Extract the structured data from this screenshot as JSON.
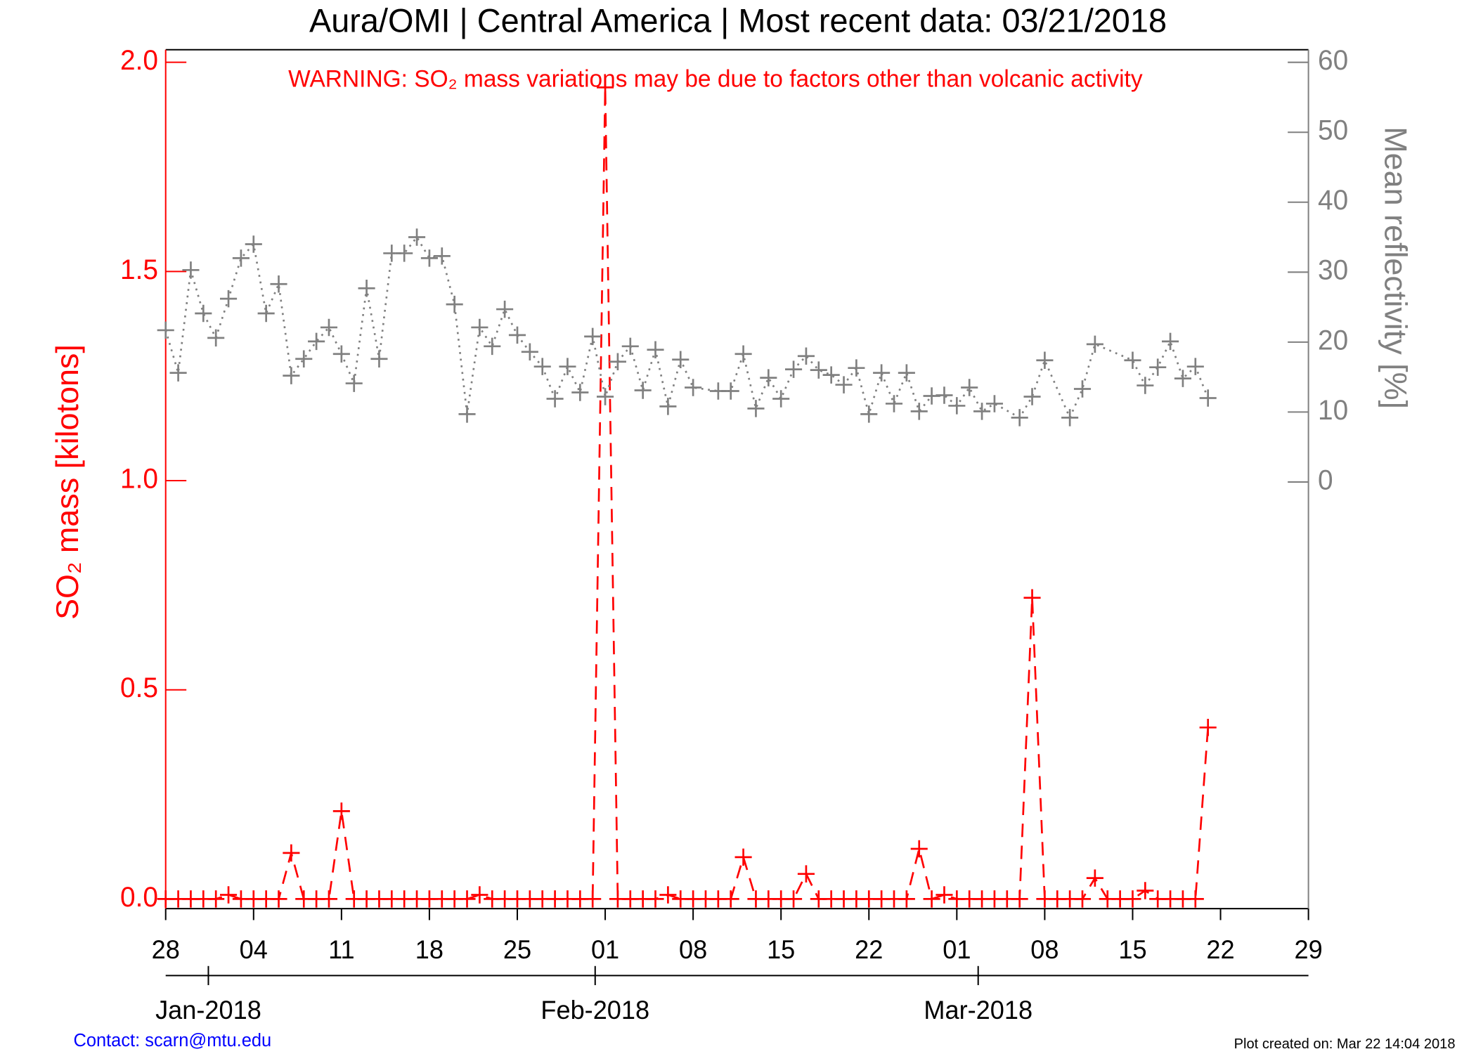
{
  "chart_data": {
    "type": "line",
    "title": "Aura/OMI | Central America | Most recent data: 03/21/2018",
    "annotation": "WARNING: SO₂ mass variations may be due to factors other than volcanic activity",
    "y_label": "SO₂ mass [kilotons]",
    "y2_label": "Mean reflectivity [%]",
    "xlim": [
      0,
      91
    ],
    "xticks": [
      {
        "value": 0,
        "label": "28"
      },
      {
        "value": 7,
        "label": "04"
      },
      {
        "value": 14,
        "label": "11"
      },
      {
        "value": 21,
        "label": "18"
      },
      {
        "value": 28,
        "label": "25"
      },
      {
        "value": 35,
        "label": "01"
      },
      {
        "value": 42,
        "label": "08"
      },
      {
        "value": 49,
        "label": "15"
      },
      {
        "value": 56,
        "label": "22"
      },
      {
        "value": 63,
        "label": "01"
      },
      {
        "value": 70,
        "label": "08"
      },
      {
        "value": 77,
        "label": "15"
      },
      {
        "value": 84,
        "label": "22"
      },
      {
        "value": 91,
        "label": "29"
      }
    ],
    "month_ticks": [
      {
        "value": 3.4,
        "label": "Jan-2018"
      },
      {
        "value": 34.2,
        "label": "Feb-2018"
      },
      {
        "value": 64.7,
        "label": "Mar-2018"
      }
    ],
    "ylim": [
      -0.023,
      2.03
    ],
    "yticks": [
      {
        "value": 0,
        "label": "0.0"
      },
      {
        "value": 0.5,
        "label": "0.5"
      },
      {
        "value": 1,
        "label": "1.0"
      },
      {
        "value": 1.5,
        "label": "1.5"
      },
      {
        "value": 2,
        "label": "2.0"
      }
    ],
    "y2lim": [
      -61,
      61.8
    ],
    "y2ticks": [
      0,
      10,
      20,
      30,
      40,
      50,
      60
    ],
    "series": [
      {
        "name": "SO₂ mass",
        "color": "#ff0000",
        "axis": "y",
        "x": [
          0,
          1,
          2,
          3,
          4,
          5,
          6,
          7,
          8,
          9,
          10,
          11,
          12,
          13,
          14,
          15,
          16,
          17,
          18,
          19,
          20,
          21,
          22,
          23,
          24,
          25,
          26,
          27,
          28,
          29,
          30,
          31,
          32,
          33,
          34,
          35,
          36,
          37,
          38,
          39,
          40,
          41,
          42,
          43,
          44,
          45,
          46,
          47,
          48,
          49,
          50,
          51,
          52,
          53,
          54,
          55,
          56,
          57,
          58,
          59,
          60,
          61,
          62,
          63,
          64,
          65,
          66,
          67,
          68,
          69,
          70,
          71,
          72,
          73,
          74,
          75,
          76,
          77,
          78,
          79,
          80,
          81,
          82,
          83
        ],
        "values": [
          0,
          0,
          0,
          0,
          0,
          0.01,
          0,
          0,
          0,
          0,
          0.11,
          0,
          0,
          0,
          0.21,
          0,
          0,
          0,
          0,
          0,
          0,
          0,
          0,
          0,
          0,
          0.01,
          0,
          0,
          0,
          0,
          0,
          0,
          0,
          0,
          0,
          1.94,
          0,
          0,
          0,
          0,
          0.01,
          0,
          0,
          0,
          0,
          0,
          0.1,
          0,
          0,
          0,
          0,
          0.06,
          0,
          0,
          0,
          0,
          0,
          0,
          0,
          0,
          0.12,
          0,
          0.01,
          0,
          0,
          0,
          0,
          0,
          0,
          0.72,
          0,
          0,
          0,
          0,
          0.05,
          0,
          0,
          0,
          0.02,
          0,
          0,
          0,
          0,
          0.41
        ]
      },
      {
        "name": "Mean reflectivity",
        "color": "#808080",
        "axis": "y2",
        "x": [
          0,
          1,
          2,
          3,
          4,
          5,
          6,
          7,
          8,
          9,
          10,
          11,
          12,
          13,
          14,
          15,
          16,
          17,
          18,
          19,
          20,
          21,
          22,
          23,
          24,
          25,
          26,
          27,
          28,
          29,
          30,
          31,
          32,
          33,
          34,
          35,
          36,
          37,
          38,
          39,
          40,
          41,
          42,
          44,
          45,
          46,
          47,
          48,
          49,
          50,
          51,
          52,
          53,
          54,
          55,
          56,
          57,
          58,
          59,
          60,
          61,
          62,
          63,
          64,
          65,
          66,
          68,
          69,
          70,
          72,
          73,
          74,
          77,
          78,
          79,
          80,
          81,
          82,
          83
        ],
        "values": [
          21.7,
          15.6,
          30.3,
          24.1,
          20.6,
          26.2,
          32.0,
          34.0,
          24.1,
          28.3,
          15.2,
          17.6,
          20.1,
          22.1,
          18.3,
          14.1,
          27.7,
          17.6,
          32.7,
          32.7,
          35.0,
          32.0,
          32.3,
          25.4,
          9.7,
          22.1,
          19.4,
          24.7,
          21.0,
          18.6,
          16.5,
          11.9,
          16.5,
          12.8,
          20.8,
          12.2,
          17.2,
          19.4,
          13.1,
          18.9,
          10.8,
          17.5,
          13.5,
          13.0,
          13.0,
          18.3,
          10.5,
          14.9,
          11.9,
          16.1,
          18.0,
          16.0,
          15.3,
          13.9,
          16.3,
          9.7,
          15.6,
          11.2,
          15.6,
          10.1,
          12.3,
          12.4,
          10.9,
          13.5,
          10.1,
          11.2,
          9.2,
          12.2,
          17.4,
          9.2,
          13.3,
          19.7,
          17.4,
          13.8,
          16.4,
          20.1,
          14.8,
          16.5,
          12.0
        ]
      }
    ],
    "contact": "Contact: scarn@mtu.edu",
    "created": "Plot created on: Mar 22 14:04 2018"
  }
}
